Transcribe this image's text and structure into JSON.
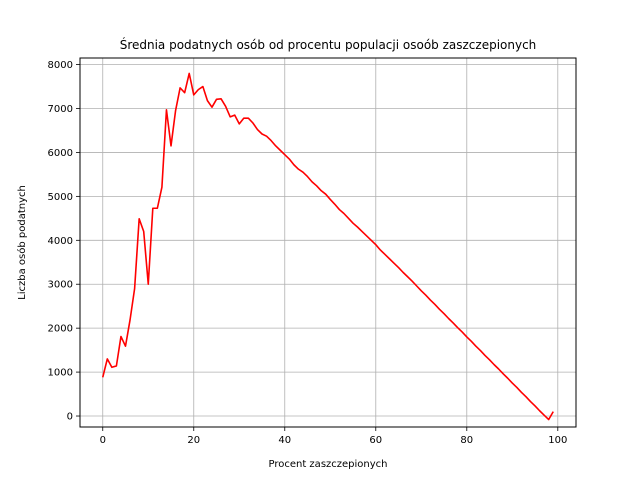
{
  "chart_data": {
    "type": "line",
    "title": "Średnia podatnych osób od procentu populacji osoób zaszczepionych",
    "xlabel": "Procent zaszczepionych",
    "ylabel": "Liczba osób podatnych",
    "xlim": [
      -5,
      104
    ],
    "ylim": [
      -250,
      8150
    ],
    "x_ticks": [
      0,
      20,
      40,
      60,
      80,
      100
    ],
    "x_tick_labels": [
      "0",
      "20",
      "40",
      "60",
      "80",
      "100"
    ],
    "y_ticks": [
      0,
      1000,
      2000,
      3000,
      4000,
      5000,
      6000,
      7000,
      8000
    ],
    "y_tick_labels": [
      "0",
      "1000",
      "2000",
      "3000",
      "4000",
      "5000",
      "6000",
      "7000",
      "8000"
    ],
    "grid": true,
    "series": [
      {
        "name": "Liczba osób podatnych",
        "color": "#ff0000",
        "x": [
          0,
          1,
          2,
          3,
          4,
          5,
          6,
          7,
          8,
          9,
          10,
          11,
          12,
          13,
          14,
          15,
          16,
          17,
          18,
          19,
          20,
          21,
          22,
          23,
          24,
          25,
          26,
          27,
          28,
          29,
          30,
          31,
          32,
          33,
          34,
          35,
          36,
          37,
          38,
          39,
          40,
          41,
          42,
          43,
          44,
          45,
          46,
          47,
          48,
          49,
          50,
          51,
          52,
          53,
          54,
          55,
          56,
          57,
          58,
          59,
          60,
          61,
          62,
          63,
          64,
          65,
          66,
          67,
          68,
          69,
          70,
          71,
          72,
          73,
          74,
          75,
          76,
          77,
          78,
          79,
          80,
          81,
          82,
          83,
          84,
          85,
          86,
          87,
          88,
          89,
          90,
          91,
          92,
          93,
          94,
          95,
          96,
          97,
          98,
          99
        ],
        "values": [
          880,
          1300,
          1110,
          1140,
          1810,
          1590,
          2190,
          2900,
          4490,
          4200,
          3000,
          4730,
          4730,
          5210,
          6970,
          6150,
          6950,
          7470,
          7360,
          7800,
          7310,
          7430,
          7500,
          7180,
          7030,
          7210,
          7220,
          7050,
          6810,
          6850,
          6650,
          6780,
          6780,
          6670,
          6520,
          6420,
          6370,
          6270,
          6150,
          6050,
          5950,
          5850,
          5720,
          5620,
          5550,
          5450,
          5330,
          5240,
          5130,
          5050,
          4930,
          4820,
          4700,
          4610,
          4500,
          4390,
          4300,
          4200,
          4100,
          4000,
          3900,
          3780,
          3680,
          3580,
          3480,
          3380,
          3270,
          3170,
          3070,
          2960,
          2850,
          2750,
          2640,
          2540,
          2430,
          2330,
          2220,
          2120,
          2010,
          1910,
          1800,
          1700,
          1590,
          1490,
          1380,
          1280,
          1170,
          1070,
          960,
          860,
          750,
          650,
          540,
          440,
          330,
          230,
          120,
          20,
          -80,
          100
        ]
      }
    ]
  }
}
